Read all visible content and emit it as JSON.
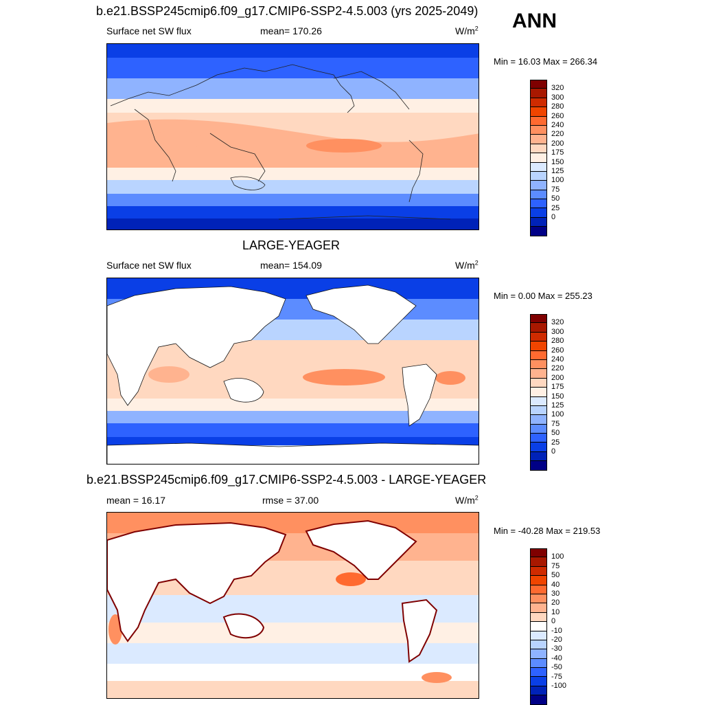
{
  "season": "ANN",
  "panels": [
    {
      "title": "b.e21.BSSP245cmip6.f09_g17.CMIP6-SSP2-4.5.003 (yrs 2025-2049)",
      "left_label": "Surface net SW flux",
      "center_label": "mean= 170.26",
      "units_base": "W/m",
      "units_exp": "2",
      "minmax": "Min =  16.03 Max = 266.34",
      "colorbar": {
        "ticks": [
          "320",
          "300",
          "280",
          "260",
          "240",
          "220",
          "200",
          "175",
          "150",
          "125",
          "100",
          "75",
          "50",
          "25",
          "0"
        ],
        "colors": [
          "#7f0000",
          "#a81800",
          "#cf2b00",
          "#f04500",
          "#ff6a30",
          "#ff9060",
          "#ffb38f",
          "#ffd8c0",
          "#fff0e4",
          "#dbeaff",
          "#b9d4ff",
          "#8fb3ff",
          "#5c8cff",
          "#2e62ff",
          "#0a3fe6",
          "#0022b8",
          "#000086"
        ]
      },
      "land_masked": false
    },
    {
      "title": "LARGE-YEAGER",
      "left_label": "Surface net SW flux",
      "center_label": "mean= 154.09",
      "units_base": "W/m",
      "units_exp": "2",
      "minmax": "Min =   0.00 Max = 255.23",
      "colorbar": {
        "ticks": [
          "320",
          "300",
          "280",
          "260",
          "240",
          "220",
          "200",
          "175",
          "150",
          "125",
          "100",
          "75",
          "50",
          "25",
          "0"
        ],
        "colors": [
          "#7f0000",
          "#a81800",
          "#cf2b00",
          "#f04500",
          "#ff6a30",
          "#ff9060",
          "#ffb38f",
          "#ffd8c0",
          "#fff0e4",
          "#dbeaff",
          "#b9d4ff",
          "#8fb3ff",
          "#5c8cff",
          "#2e62ff",
          "#0a3fe6",
          "#0022b8",
          "#000086"
        ]
      },
      "land_masked": true
    },
    {
      "title": "b.e21.BSSP245cmip6.f09_g17.CMIP6-SSP2-4.5.003 - LARGE-YEAGER",
      "left_label": "mean =  16.17",
      "center_label": "rmse =  37.00",
      "units_base": "W/m",
      "units_exp": "2",
      "minmax": "Min = -40.28 Max = 219.53",
      "colorbar": {
        "ticks": [
          "100",
          "75",
          "50",
          "40",
          "30",
          "20",
          "10",
          "0",
          "-10",
          "-20",
          "-30",
          "-40",
          "-50",
          "-75",
          "-100"
        ],
        "colors": [
          "#7f0000",
          "#a81800",
          "#cf2b00",
          "#f04500",
          "#ff6a30",
          "#ff9060",
          "#ffb38f",
          "#ffd8c0",
          "#ffffff",
          "#dbeaff",
          "#b9d4ff",
          "#8fb3ff",
          "#5c8cff",
          "#2e62ff",
          "#0a3fe6",
          "#0022b8",
          "#000086"
        ]
      },
      "land_masked": true
    }
  ]
}
